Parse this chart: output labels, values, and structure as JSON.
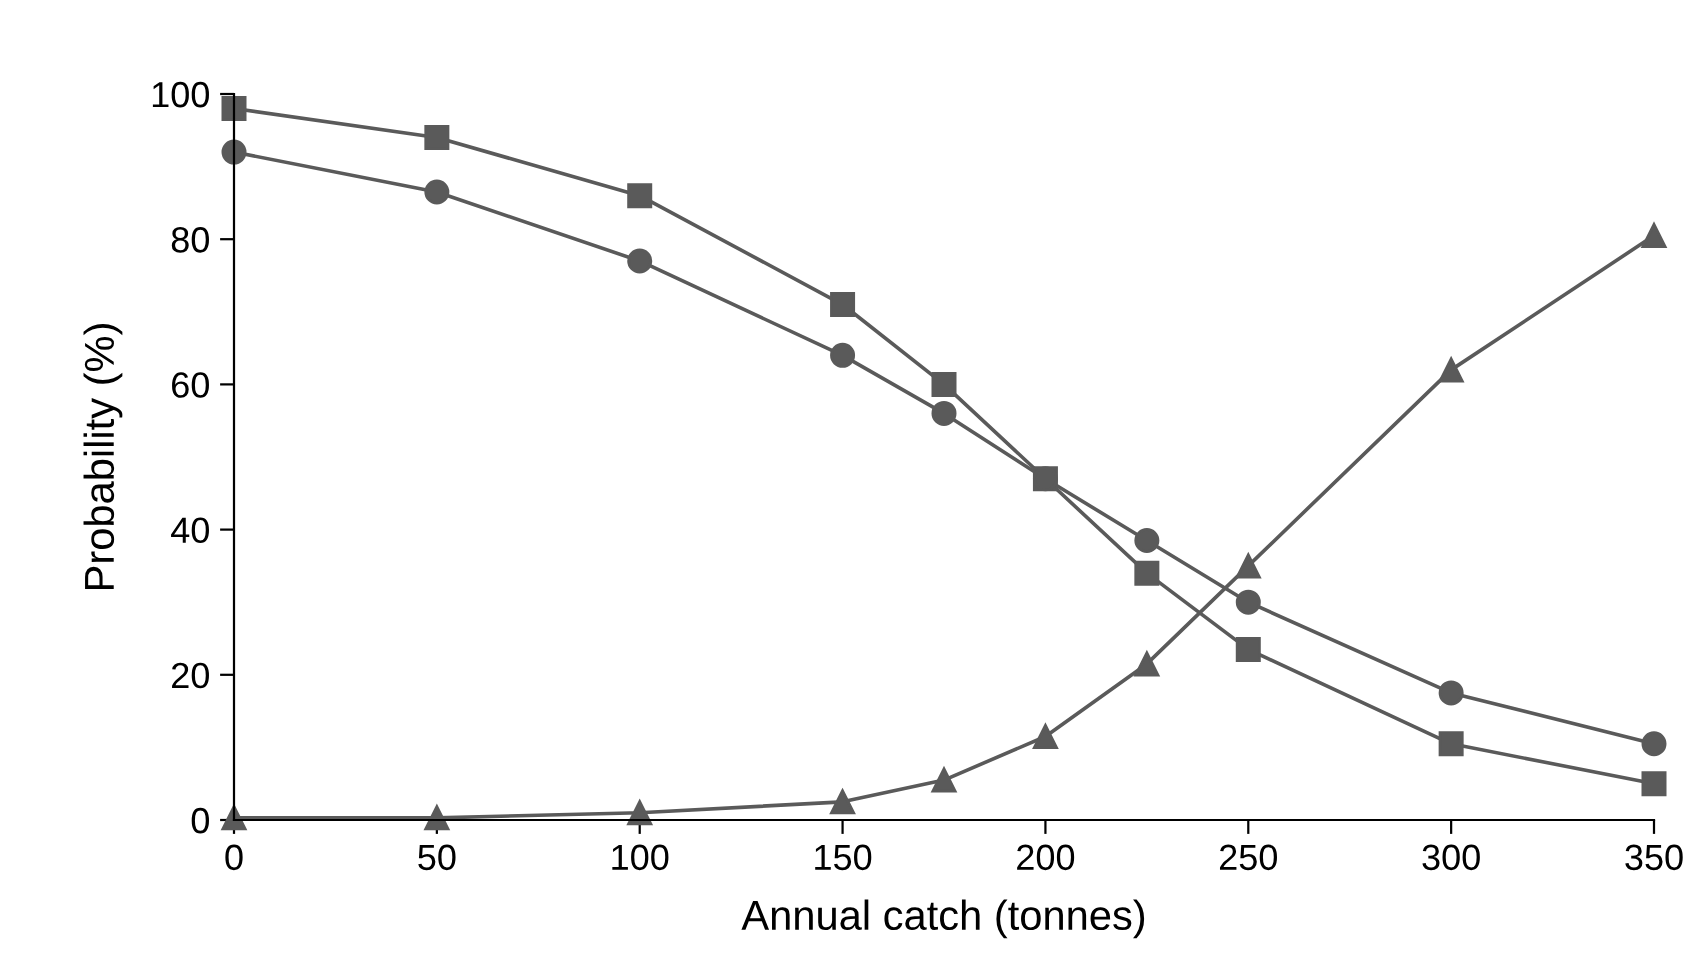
{
  "chart_data": {
    "type": "line",
    "xlabel": "Annual catch (tonnes)",
    "ylabel": "Probability (%)",
    "x": [
      0,
      50,
      100,
      150,
      175,
      200,
      225,
      250,
      300,
      350
    ],
    "series": [
      {
        "color": "#5a5a5a",
        "marker": "square",
        "values": [
          98,
          94,
          86,
          71,
          60,
          47,
          34,
          23.5,
          10.5,
          5
        ]
      },
      {
        "color": "#5a5a5a",
        "marker": "circle",
        "values": [
          92,
          86.5,
          77,
          64,
          56,
          47,
          38.5,
          30,
          17.5,
          10.5
        ]
      },
      {
        "color": "#5a5a5a",
        "marker": "triangle",
        "values": [
          0.3,
          0.3,
          1,
          2.5,
          5.5,
          11.5,
          21.5,
          35,
          62,
          80.5
        ]
      }
    ],
    "xlim": [
      0,
      350
    ],
    "xticks": [
      0,
      50,
      100,
      150,
      200,
      250,
      300,
      350
    ],
    "ylim": [
      0,
      100
    ],
    "yticks": [
      0,
      20,
      40,
      60,
      80,
      100
    ],
    "grid": false,
    "legend": false,
    "line_style": "solid"
  }
}
